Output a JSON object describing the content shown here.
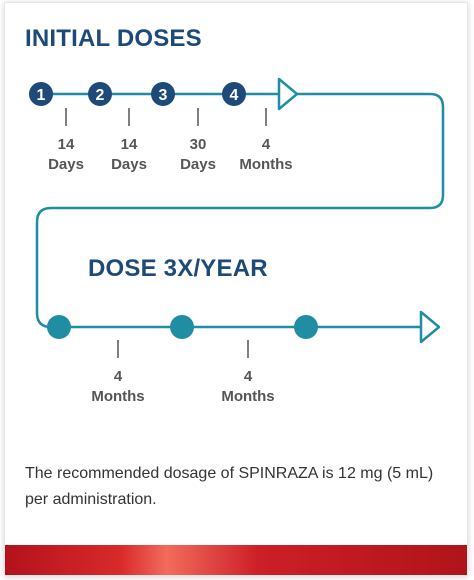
{
  "initial": {
    "title": "INITIAL DOSES",
    "steps": [
      {
        "num": "1",
        "interval_value": "14",
        "interval_unit": "Days"
      },
      {
        "num": "2",
        "interval_value": "14",
        "interval_unit": "Days"
      },
      {
        "num": "3",
        "interval_value": "30",
        "interval_unit": "Days"
      },
      {
        "num": "4",
        "interval_value": "4",
        "interval_unit": "Months"
      }
    ]
  },
  "maintenance": {
    "title": "DOSE 3X/YEAR",
    "intervals": [
      {
        "value": "4",
        "unit": "Months"
      },
      {
        "value": "4",
        "unit": "Months"
      }
    ]
  },
  "note": {
    "text": "The recommended dosage of SPINRAZA is 12 mg (5 mL) per administration."
  },
  "colors": {
    "heading": "#1d4a78",
    "initial_dot": "#1d4a78",
    "teal": "#1f8ea3",
    "banner_red": "#c8151f"
  }
}
